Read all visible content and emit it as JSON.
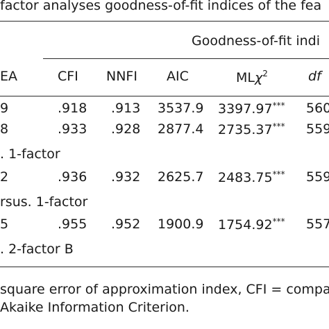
{
  "table": {
    "title": "factor analyses goodness-of-fit indices of the fea",
    "group_header": "Goodness-of-fit indi",
    "columns": {
      "rmsea": "EA",
      "cfi": "CFI",
      "nnfi": "NNFI",
      "aic": "AIC",
      "ml_base": "ML",
      "ml_chi": "χ",
      "ml_sup": "2",
      "df": "df"
    },
    "rows": [
      {
        "rmsea": "9",
        "cfi": ".918",
        "nnfi": ".913",
        "aic": "3537.9",
        "ml": "3397.97",
        "sig": "***",
        "df": "560"
      },
      {
        "rmsea": "8",
        "cfi": ".933",
        "nnfi": ".928",
        "aic": "2877.4",
        "ml": "2735.37",
        "sig": "***",
        "df": "559"
      },
      {
        "rmsea": "2",
        "cfi": ".936",
        "nnfi": ".932",
        "aic": "2625.7",
        "ml": "2483.75",
        "sig": "***",
        "df": "559"
      },
      {
        "rmsea": "5",
        "cfi": ".955",
        "nnfi": ".952",
        "aic": "1900.9",
        "ml": "1754.92",
        "sig": "***",
        "df": "557"
      }
    ],
    "subheads": [
      ". 1-factor",
      "rsus. 1-factor",
      ". 2-factor B"
    ],
    "footnotes": [
      "square error of approximation index, CFI = compara",
      "Akaike Information Criterion."
    ]
  }
}
